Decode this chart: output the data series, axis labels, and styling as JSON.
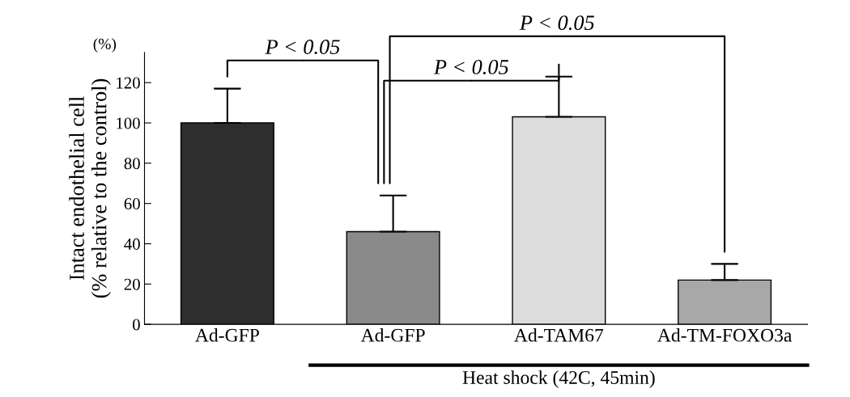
{
  "chart_data": {
    "type": "bar",
    "categories": [
      "Ad-GFP",
      "Ad-GFP",
      "Ad-TAM67",
      "Ad-TM-FOXO3a"
    ],
    "values": [
      100,
      46,
      103,
      22
    ],
    "errors": [
      [
        100,
        117
      ],
      [
        46,
        64
      ],
      [
        103,
        123
      ],
      [
        22,
        30
      ]
    ],
    "colors": [
      "#2e2e2e",
      "#8a8a8a",
      "#dcdcdc",
      "#a8a8a8"
    ],
    "ylabel": "Intact endothelial cell\n(% relative to the control)",
    "ylim": [
      0,
      135
    ],
    "yticks": [
      0,
      20,
      40,
      60,
      80,
      100,
      120
    ],
    "grid": false,
    "legend": false,
    "annotations": [
      "(%)",
      "P < 0.05",
      "P < 0.05",
      "P < 0.05",
      "Heat shock (42C, 45min)"
    ]
  }
}
